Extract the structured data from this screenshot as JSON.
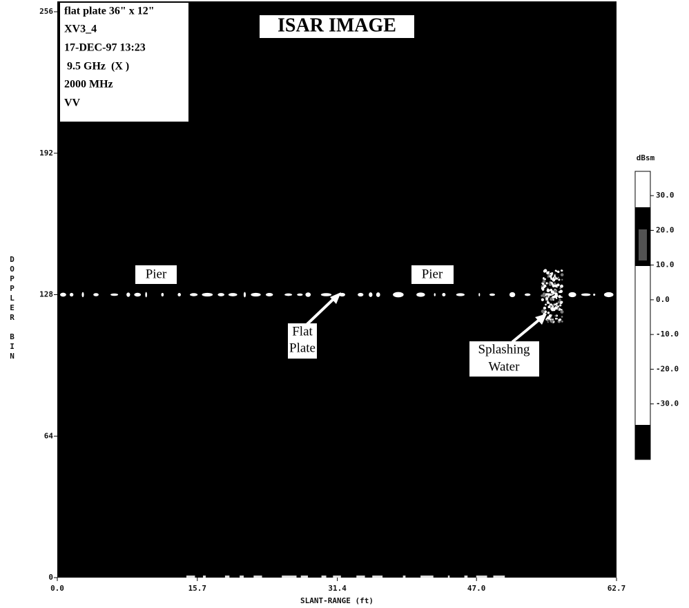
{
  "chart_data": {
    "type": "image",
    "title": "ISAR IMAGE",
    "info": [
      "flat plate 36\" x 12\"",
      "XV3_4",
      "17-DEC-97  13:23",
      " 9.5 GHz  (X )",
      "2000 MHz",
      "VV"
    ],
    "x_label": "SLANT-RANGE (ft)",
    "y_label": "DOPPLER BIN",
    "xlim": [
      0,
      62.7
    ],
    "xticks": [
      {
        "value": 0,
        "label": "0.0"
      },
      15.7,
      31.4,
      {
        "value": 47,
        "label": "47.0"
      },
      62.7
    ],
    "ylim": [
      0,
      256
    ],
    "yticks": [
      0,
      64,
      128,
      192,
      256
    ],
    "annotations": [
      "Pier",
      "Pier",
      "Flat",
      "Plate",
      "Splashing",
      "Water"
    ],
    "colorbar": {
      "title": "dBsm",
      "lim": [
        -46,
        37
      ],
      "ticks": [
        {
          "value": 30,
          "label": "30.0"
        },
        {
          "value": 20,
          "label": "20.0"
        },
        {
          "value": 10,
          "label": "10.0"
        },
        {
          "value": 0,
          "label": "0.0"
        },
        {
          "value": -10,
          "label": "-10.0"
        },
        {
          "value": -20,
          "label": "-20.0"
        },
        {
          "value": -30,
          "label": "-30.0"
        }
      ]
    }
  }
}
